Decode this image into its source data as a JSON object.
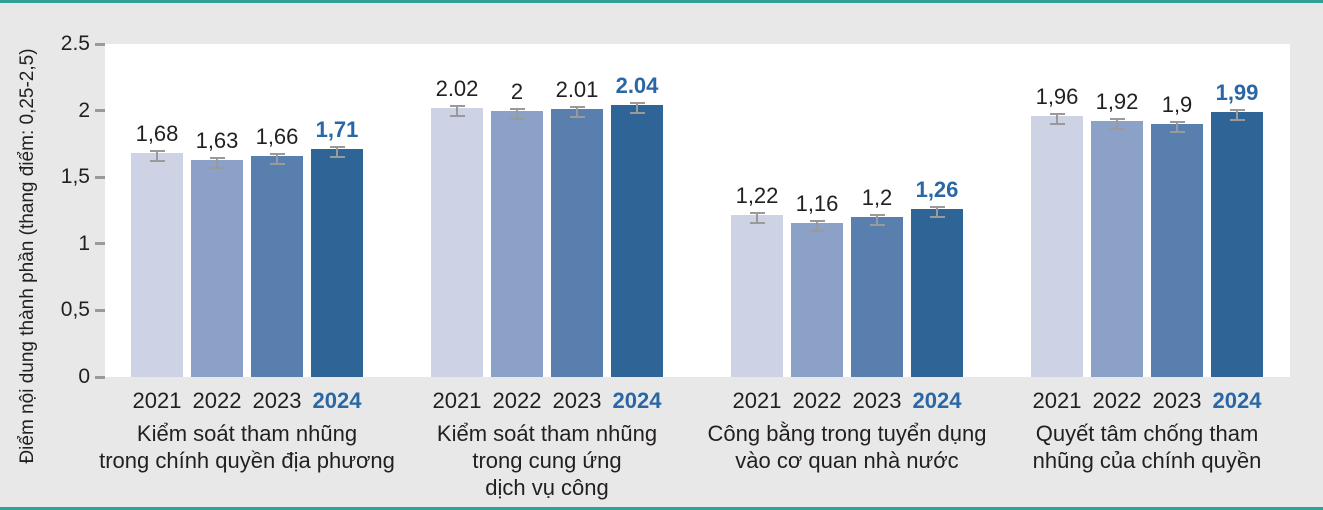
{
  "figure": {
    "background_color": "#e8e8e9",
    "plot_background_color": "#ffffff",
    "accent_rule_color": "#31a095"
  },
  "colors": {
    "bar_2021": "#cdd3e4",
    "bar_2022": "#8ba1c7",
    "bar_2023": "#587fae",
    "bar_2024": "#2e6496",
    "text_default": "#231f20",
    "text_2024_highlight": "#2a67a4",
    "tick_and_errorbar_gray": "#9a9a9a"
  },
  "chart_data": {
    "type": "bar",
    "title": "",
    "ylabel": "Điểm nội dung thành phần (thang điểm: 0,25-2,5)",
    "xlabel": "",
    "ylim": [
      0,
      2.5
    ],
    "grid": false,
    "legend": false,
    "error_bars": "small gray I-beam whiskers at each bar top",
    "yticks": [
      {
        "label": "2.5",
        "value": 2.5
      },
      {
        "label": "2",
        "value": 2
      },
      {
        "label": "1,5",
        "value": 1.5
      },
      {
        "label": "1",
        "value": 1
      },
      {
        "label": "0,5",
        "value": 0.5
      },
      {
        "label": "0",
        "value": 0
      }
    ],
    "series_years": [
      "2021",
      "2022",
      "2023",
      "2024"
    ],
    "groups": [
      {
        "category": "Kiểm soát tham nhũng trong chính quyền địa phương",
        "category_lines": [
          "Kiểm soát tham nhũng",
          "trong chính quyền địa phương"
        ],
        "bars": [
          {
            "year": "2021",
            "value": 1.68,
            "label": "1,68"
          },
          {
            "year": "2022",
            "value": 1.63,
            "label": "1,63"
          },
          {
            "year": "2023",
            "value": 1.66,
            "label": "1,66"
          },
          {
            "year": "2024",
            "value": 1.71,
            "label": "1,71"
          }
        ]
      },
      {
        "category": "Kiểm soát tham nhũng trong cung ứng dịch vụ công",
        "category_lines": [
          "Kiểm soát tham nhũng",
          "trong cung ứng",
          "dịch vụ công"
        ],
        "bars": [
          {
            "year": "2021",
            "value": 2.02,
            "label": "2.02"
          },
          {
            "year": "2022",
            "value": 2.0,
            "label": "2"
          },
          {
            "year": "2023",
            "value": 2.01,
            "label": "2.01"
          },
          {
            "year": "2024",
            "value": 2.04,
            "label": "2.04"
          }
        ]
      },
      {
        "category": "Công bằng trong tuyển dụng vào cơ quan nhà nước",
        "category_lines": [
          "Công bằng trong tuyển dụng",
          "vào cơ quan nhà nước"
        ],
        "bars": [
          {
            "year": "2021",
            "value": 1.22,
            "label": "1,22"
          },
          {
            "year": "2022",
            "value": 1.16,
            "label": "1,16"
          },
          {
            "year": "2023",
            "value": 1.2,
            "label": "1,2"
          },
          {
            "year": "2024",
            "value": 1.26,
            "label": "1,26"
          }
        ]
      },
      {
        "category": "Quyết tâm chống tham nhũng của chính quyền",
        "category_lines": [
          "Quyết tâm chống tham",
          "nhũng của chính quyền"
        ],
        "bars": [
          {
            "year": "2021",
            "value": 1.96,
            "label": "1,96"
          },
          {
            "year": "2022",
            "value": 1.92,
            "label": "1,92"
          },
          {
            "year": "2023",
            "value": 1.9,
            "label": "1,9"
          },
          {
            "year": "2024",
            "value": 1.99,
            "label": "1,99"
          }
        ]
      }
    ]
  }
}
